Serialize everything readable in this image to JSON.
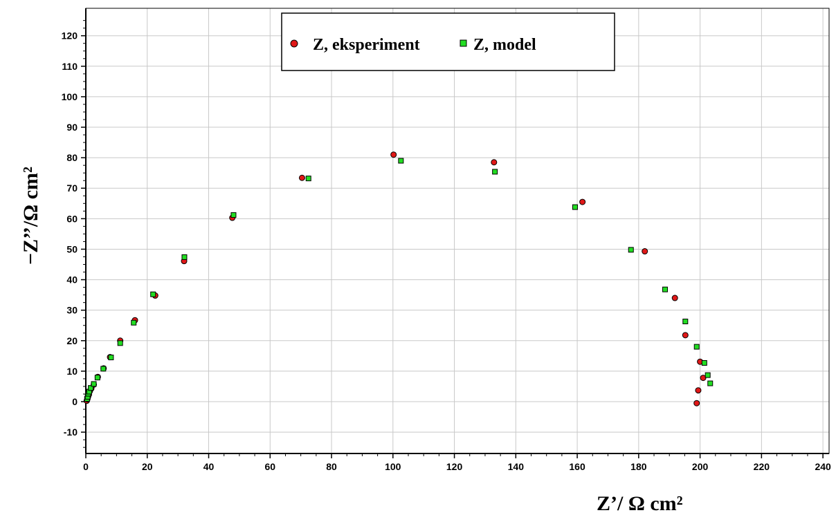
{
  "chart_data": {
    "type": "scatter",
    "title": "",
    "xlabel": "Z’/ Ω cm²",
    "ylabel": "−Z’’/Ω cm²",
    "xlim": [
      0,
      242
    ],
    "ylim": [
      -17,
      129
    ],
    "xticks": [
      0,
      20,
      40,
      60,
      80,
      100,
      120,
      140,
      160,
      180,
      200,
      220,
      240
    ],
    "yticks": [
      -10,
      0,
      10,
      20,
      30,
      40,
      50,
      60,
      70,
      80,
      90,
      100,
      110,
      120
    ],
    "grid": true,
    "legend_position": "top-center",
    "series": [
      {
        "name": "Z, eksperiment",
        "marker": "circle",
        "color": "#e01818",
        "points": [
          [
            0.3,
            0.3
          ],
          [
            0.5,
            0.8
          ],
          [
            0.7,
            1.5
          ],
          [
            1.0,
            2.3
          ],
          [
            1.3,
            3.4
          ],
          [
            1.8,
            4.3
          ],
          [
            2.6,
            5.6
          ],
          [
            3.9,
            8.1
          ],
          [
            5.8,
            10.9
          ],
          [
            7.9,
            14.6
          ],
          [
            11.2,
            20.0
          ],
          [
            16.0,
            26.7
          ],
          [
            22.6,
            34.8
          ],
          [
            32.0,
            46.1
          ],
          [
            47.7,
            60.3
          ],
          [
            70.4,
            73.4
          ],
          [
            100.2,
            81.0
          ],
          [
            132.9,
            78.5
          ],
          [
            161.7,
            65.5
          ],
          [
            182.0,
            49.3
          ],
          [
            191.8,
            34.0
          ],
          [
            195.2,
            21.8
          ],
          [
            200.0,
            13.1
          ],
          [
            201.0,
            7.8
          ],
          [
            199.4,
            3.7
          ],
          [
            198.9,
            -0.5
          ]
        ]
      },
      {
        "name": "Z, model",
        "marker": "square",
        "color": "#22dd22",
        "points": [
          [
            0.4,
            0.9
          ],
          [
            0.6,
            1.6
          ],
          [
            0.8,
            2.6
          ],
          [
            1.1,
            3.3
          ],
          [
            1.6,
            4.5
          ],
          [
            2.6,
            5.8
          ],
          [
            3.8,
            7.9
          ],
          [
            5.7,
            10.8
          ],
          [
            8.2,
            14.5
          ],
          [
            11.2,
            19.2
          ],
          [
            15.6,
            25.9
          ],
          [
            21.9,
            35.2
          ],
          [
            32.1,
            47.4
          ],
          [
            48.1,
            61.2
          ],
          [
            72.5,
            73.2
          ],
          [
            102.6,
            79.0
          ],
          [
            133.2,
            75.4
          ],
          [
            159.3,
            63.8
          ],
          [
            177.5,
            49.8
          ],
          [
            188.6,
            36.8
          ],
          [
            195.2,
            26.3
          ],
          [
            198.9,
            18.0
          ],
          [
            201.4,
            12.7
          ],
          [
            202.5,
            8.7
          ],
          [
            203.3,
            6.0
          ]
        ]
      }
    ]
  }
}
